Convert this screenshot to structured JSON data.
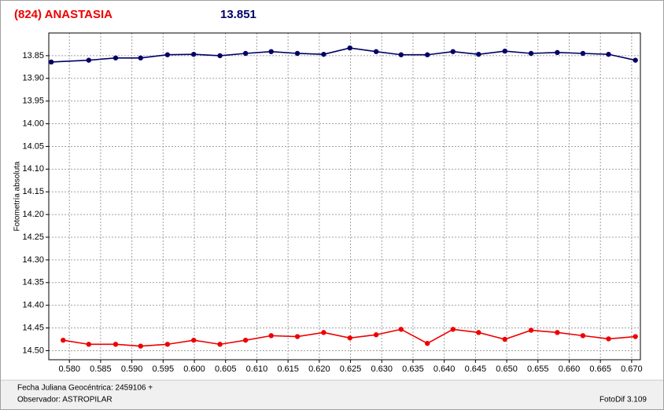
{
  "chart_data": {
    "type": "line",
    "title": "(824) ANASTASIA",
    "subtitle": "13.851",
    "y_label": "Fotometría absoluta",
    "x_label": "Fecha Juliana Geocéntrica: 2459106 +",
    "observer": "Observador: ASTROPILAR",
    "software": "FotoDif 3.109",
    "xlim": [
      0.5767,
      0.6714
    ],
    "ylim": [
      13.8,
      14.52
    ],
    "y_inverted": true,
    "grid": true,
    "xticks": [
      {
        "value": 0.58,
        "label": "0.580"
      },
      0.585,
      {
        "value": 0.59,
        "label": "0.590"
      },
      0.595,
      {
        "value": 0.6,
        "label": "0.600"
      },
      0.605,
      {
        "value": 0.61,
        "label": "0.610"
      },
      0.615,
      {
        "value": 0.62,
        "label": "0.620"
      },
      0.625,
      {
        "value": 0.63,
        "label": "0.630"
      },
      0.635,
      {
        "value": 0.64,
        "label": "0.640"
      },
      0.645,
      {
        "value": 0.65,
        "label": "0.650"
      },
      0.655,
      {
        "value": 0.66,
        "label": "0.660"
      },
      0.665,
      {
        "value": 0.67,
        "label": "0.670"
      }
    ],
    "yticks": [
      13.85,
      {
        "value": 13.9,
        "label": "13.90"
      },
      13.95,
      {
        "value": 14.0,
        "label": "14.00"
      },
      14.05,
      {
        "value": 14.1,
        "label": "14.10"
      },
      14.15,
      {
        "value": 14.2,
        "label": "14.20"
      },
      14.25,
      {
        "value": 14.3,
        "label": "14.30"
      },
      14.35,
      {
        "value": 14.4,
        "label": "14.40"
      },
      14.45,
      {
        "value": 14.5,
        "label": "14.50"
      }
    ],
    "series": [
      {
        "color": "#000066",
        "x": [
          0.5771,
          0.5831,
          0.5874,
          0.5914,
          0.5957,
          0.5999,
          0.6041,
          0.6082,
          0.6123,
          0.6165,
          0.6207,
          0.6249,
          0.6291,
          0.6331,
          0.6373,
          0.6414,
          0.6455,
          0.6497,
          0.6539,
          0.6581,
          0.6622,
          0.6663,
          0.6706
        ],
        "values": [
          13.864,
          13.86,
          13.855,
          13.855,
          13.848,
          13.847,
          13.85,
          13.845,
          13.841,
          13.845,
          13.847,
          13.833,
          13.841,
          13.848,
          13.848,
          13.841,
          13.847,
          13.84,
          13.845,
          13.843,
          13.845,
          13.847,
          13.86
        ]
      },
      {
        "color": "#ee0000",
        "x": [
          0.579,
          0.5831,
          0.5874,
          0.5914,
          0.5957,
          0.5999,
          0.6041,
          0.6082,
          0.6123,
          0.6165,
          0.6207,
          0.6249,
          0.6291,
          0.6331,
          0.6373,
          0.6414,
          0.6455,
          0.6497,
          0.6539,
          0.6581,
          0.6622,
          0.6663,
          0.6706
        ],
        "values": [
          14.477,
          14.486,
          14.486,
          14.49,
          14.486,
          14.477,
          14.486,
          14.477,
          14.467,
          14.469,
          14.46,
          14.472,
          14.465,
          14.453,
          14.484,
          14.453,
          14.46,
          14.475,
          14.455,
          14.46,
          14.467,
          14.474,
          14.469
        ]
      }
    ]
  }
}
